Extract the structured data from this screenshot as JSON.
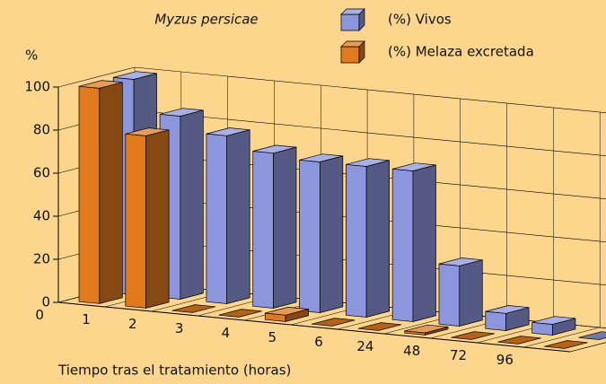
{
  "chart_data": {
    "type": "bar3d",
    "title": "Myzus persicae",
    "y_label": "%",
    "x_label": "Tiempo tras el tratamiento (horas)",
    "categories": [
      "0",
      "1",
      "2",
      "3",
      "4",
      "5",
      "6",
      "24",
      "48",
      "72",
      "96"
    ],
    "series": [
      {
        "name": "(%) Vivos",
        "color": "#8c96dc",
        "values": [
          100,
          85,
          78,
          72,
          70,
          70,
          70,
          28,
          8,
          5,
          0
        ]
      },
      {
        "name": "(%) Melaza excretada",
        "color": "#e07a1c",
        "values": [
          100,
          80,
          0,
          0,
          3,
          0,
          0,
          1,
          0,
          0,
          0
        ]
      }
    ],
    "ylim": [
      0,
      100
    ],
    "yticks": [
      0,
      20,
      40,
      60,
      80,
      100
    ],
    "grid": true
  }
}
